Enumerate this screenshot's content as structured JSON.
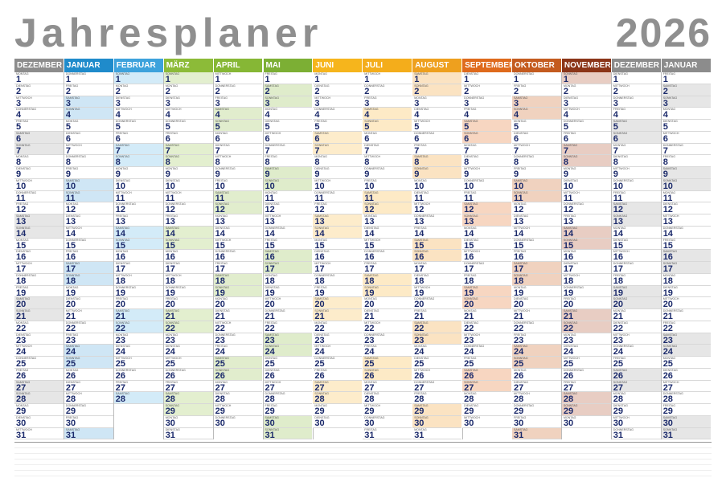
{
  "header": {
    "title": "Jahresplaner",
    "year": "2026"
  },
  "weekdays": [
    "MONTAG",
    "DIENSTAG",
    "MITTWOCH",
    "DONNERSTAG",
    "FREITAG",
    "SAMSTAG",
    "SONNTAG"
  ],
  "day_numbers": [
    1,
    2,
    3,
    4,
    5,
    6,
    7,
    8,
    9,
    10,
    11,
    12,
    13,
    14,
    15,
    16,
    17,
    18,
    19,
    20,
    21,
    22,
    23,
    24,
    25,
    26,
    27,
    28,
    29,
    30,
    31
  ],
  "months": [
    {
      "name": "DEZEMBER",
      "color": "#8c8c8c",
      "tint": "#e6e6e6",
      "length": 31,
      "start": 0
    },
    {
      "name": "JANUAR",
      "color": "#1f8bcb",
      "tint": "#cfe6f5",
      "length": 31,
      "start": 3
    },
    {
      "name": "FEBRUAR",
      "color": "#3da2dc",
      "tint": "#d3ebf8",
      "length": 28,
      "start": 6
    },
    {
      "name": "MÄRZ",
      "color": "#8cbb38",
      "tint": "#e3efcf",
      "length": 31,
      "start": 6
    },
    {
      "name": "APRIL",
      "color": "#86b735",
      "tint": "#e1edcd",
      "length": 30,
      "start": 2
    },
    {
      "name": "MAI",
      "color": "#7caf34",
      "tint": "#dfeccb",
      "length": 31,
      "start": 4
    },
    {
      "name": "JUNI",
      "color": "#f6b51c",
      "tint": "#fdeccb",
      "length": 30,
      "start": 0
    },
    {
      "name": "JULI",
      "color": "#f4ad1b",
      "tint": "#fdeac6",
      "length": 31,
      "start": 2
    },
    {
      "name": "AUGUST",
      "color": "#eea01e",
      "tint": "#fbe3c2",
      "length": 31,
      "start": 5
    },
    {
      "name": "SEPTEMBER",
      "color": "#df6a1c",
      "tint": "#f7d6c1",
      "length": 30,
      "start": 1
    },
    {
      "name": "OKTOBER",
      "color": "#c45b1f",
      "tint": "#f0d2bf",
      "length": 31,
      "start": 3
    },
    {
      "name": "NOVEMBER",
      "color": "#8b3518",
      "tint": "#e8cdc3",
      "length": 30,
      "start": 6
    },
    {
      "name": "DEZEMBER",
      "color": "#8c8c8c",
      "tint": "#e6e6e6",
      "length": 31,
      "start": 1
    },
    {
      "name": "JANUAR",
      "color": "#8c8c8c",
      "tint": "#e6e6e6",
      "length": 31,
      "start": 4
    }
  ]
}
